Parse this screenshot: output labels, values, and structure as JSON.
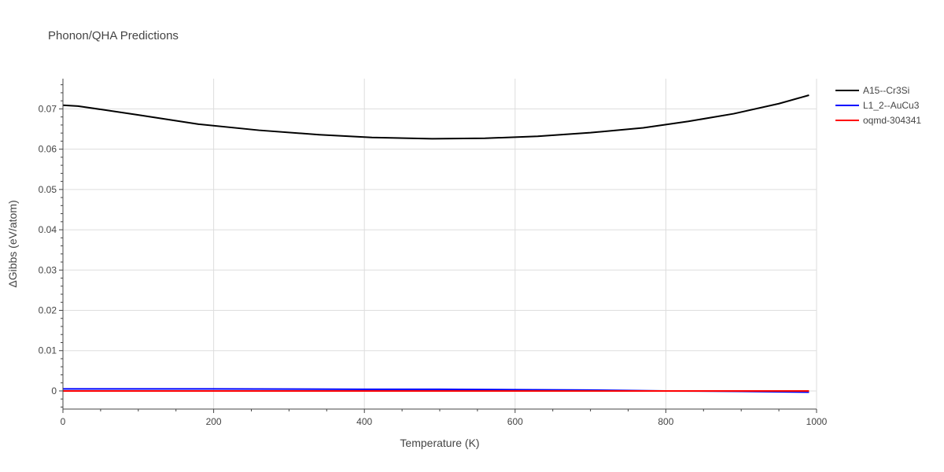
{
  "chart_data": {
    "type": "line",
    "title": "Phonon/QHA Predictions",
    "xlabel": "Temperature (K)",
    "ylabel": "ΔGibbs (eV/atom)",
    "xlim": [
      0,
      1000
    ],
    "ylim": [
      -0.0045,
      0.0775
    ],
    "x_ticks": [
      0,
      200,
      400,
      600,
      800,
      1000
    ],
    "x_tick_labels": [
      "0",
      "200",
      "400",
      "600",
      "800",
      "1000"
    ],
    "y_ticks": [
      0,
      0.01,
      0.02,
      0.03,
      0.04,
      0.05,
      0.06,
      0.07
    ],
    "y_tick_labels": [
      "0",
      "0.01",
      "0.02",
      "0.03",
      "0.04",
      "0.05",
      "0.06",
      "0.07"
    ],
    "grid": true,
    "legend_position": "top-right",
    "series": [
      {
        "name": "A15--Cr3Si",
        "color": "#000000",
        "x": [
          0,
          20,
          100,
          180,
          260,
          340,
          410,
          490,
          560,
          630,
          700,
          770,
          830,
          890,
          950,
          990
        ],
        "y": [
          0.0709,
          0.0707,
          0.0685,
          0.0662,
          0.0647,
          0.0636,
          0.0629,
          0.0626,
          0.0627,
          0.0632,
          0.0641,
          0.0653,
          0.0669,
          0.0688,
          0.0713,
          0.0734
        ]
      },
      {
        "name": "L1_2--AuCu3",
        "color": "#0000ff",
        "x": [
          0,
          200,
          400,
          500,
          600,
          700,
          800,
          900,
          990
        ],
        "y": [
          0.0005,
          0.0005,
          0.0004,
          0.0004,
          0.0003,
          0.0002,
          0.0,
          -0.0001,
          -0.0003
        ]
      },
      {
        "name": "oqmd-304341",
        "color": "#ff0000",
        "x": [
          0,
          200,
          400,
          600,
          800,
          990
        ],
        "y": [
          0.0,
          0.0,
          0.0,
          0.0,
          0.0,
          0.0
        ]
      }
    ]
  }
}
